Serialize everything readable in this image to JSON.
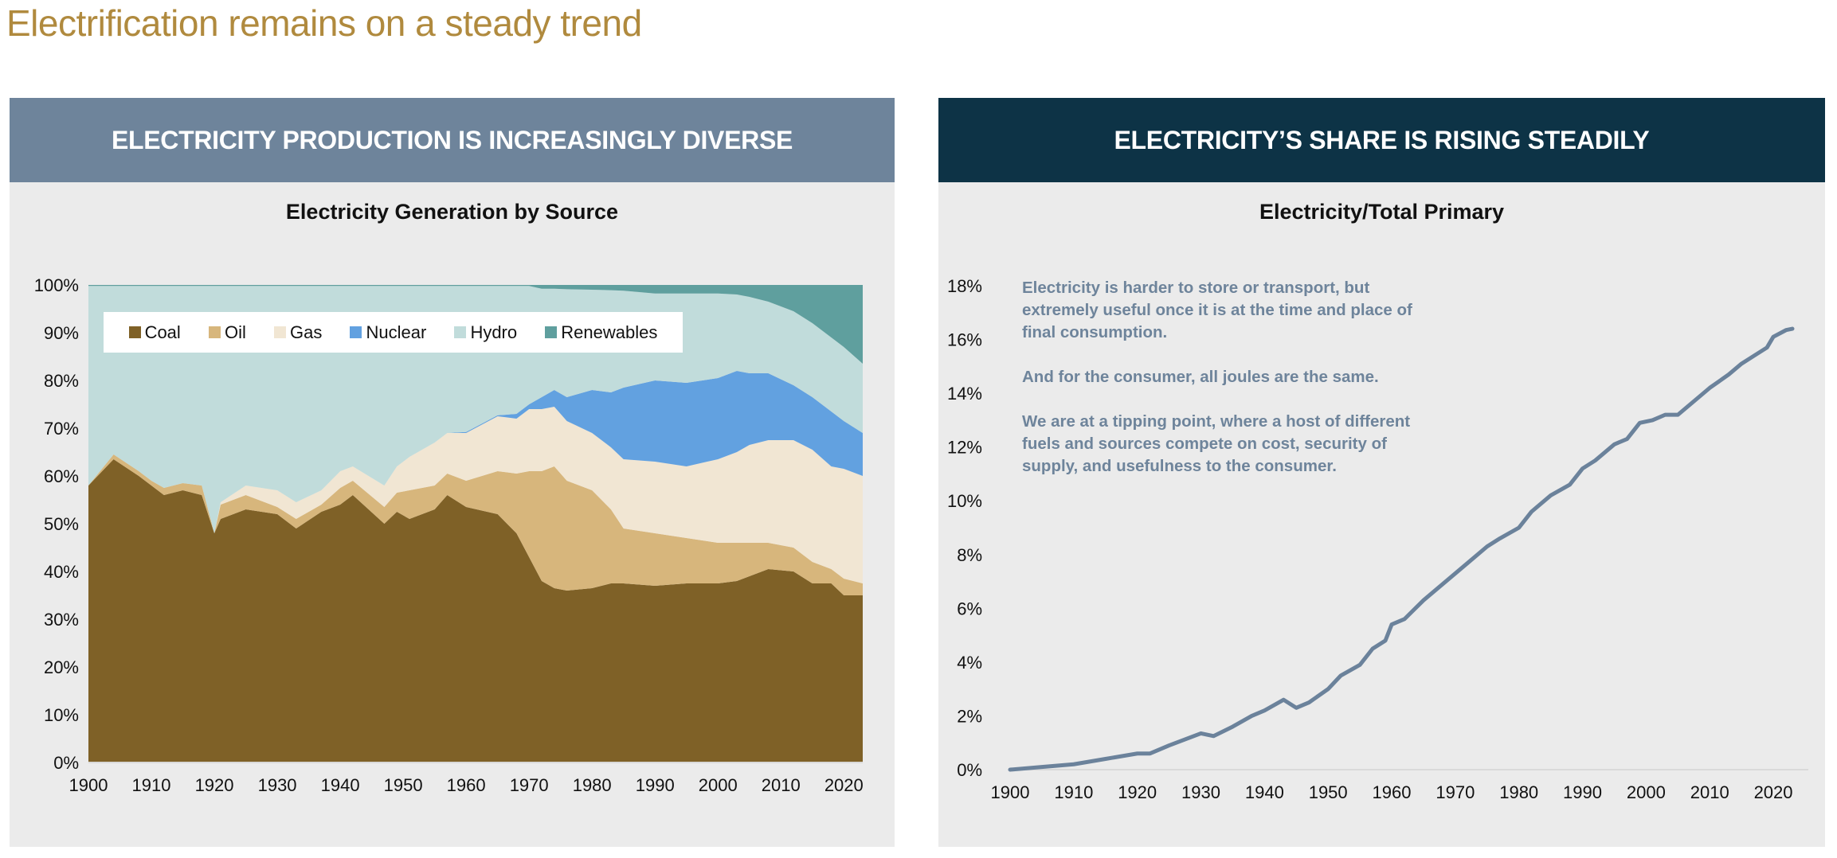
{
  "page": {
    "title": "Electrification remains on a steady trend"
  },
  "left_panel": {
    "header": "ELECTRICITY PRODUCTION IS INCREASINGLY DIVERSE"
  },
  "right_panel": {
    "header": "ELECTRICITY’S SHARE IS RISING STEADILY",
    "note": [
      "Electricity is harder to store or transport, but extremely useful once it is at the time and place of final consumption.",
      "And for the consumer, all joules are the same.",
      "We are at a tipping point, where a host of different fuels and sources  compete on cost, security of supply, and usefulness to the consumer."
    ]
  },
  "chart_data": [
    {
      "type": "area",
      "stacked": true,
      "title": "Electricity Generation by Source",
      "xlabel": "",
      "ylabel": "",
      "xlim": [
        1900,
        2023
      ],
      "ylim": [
        0,
        100
      ],
      "x_ticks": [
        "1900",
        "1910",
        "1920",
        "1930",
        "1940",
        "1950",
        "1960",
        "1970",
        "1980",
        "1990",
        "2000",
        "2010",
        "2020"
      ],
      "y_ticks": [
        "0%",
        "10%",
        "20%",
        "30%",
        "40%",
        "50%",
        "60%",
        "70%",
        "80%",
        "90%",
        "100%"
      ],
      "legend_position": "top-left",
      "x": [
        1900,
        1904,
        1908,
        1910,
        1912,
        1915,
        1918,
        1920,
        1921,
        1925,
        1930,
        1933,
        1937,
        1940,
        1942,
        1947,
        1949,
        1951,
        1955,
        1957,
        1960,
        1965,
        1968,
        1970,
        1972,
        1974,
        1976,
        1980,
        1983,
        1985,
        1990,
        1995,
        2000,
        2003,
        2005,
        2008,
        2012,
        2015,
        2018,
        2020,
        2023
      ],
      "series": [
        {
          "name": "Coal",
          "color": "#7F6127",
          "values": [
            58,
            63.5,
            60,
            58,
            56,
            57,
            56,
            48,
            51,
            53,
            52,
            49,
            52.5,
            54,
            56,
            50,
            52.5,
            51,
            53,
            56,
            53.5,
            52,
            48,
            43,
            38,
            36.5,
            36,
            36.5,
            37.5,
            37.5,
            37,
            37.5,
            37.5,
            38,
            39,
            40.5,
            40,
            37.5,
            37.5,
            35,
            35
          ]
        },
        {
          "name": "Oil",
          "color": "#D7B67C",
          "values": [
            0,
            1,
            1,
            1,
            1.5,
            1.5,
            2,
            0,
            3,
            3,
            1.5,
            2,
            1.5,
            3.5,
            3,
            3.5,
            4,
            6,
            5,
            4.5,
            5.5,
            9,
            12.5,
            18,
            23,
            25.5,
            23,
            20.5,
            15.5,
            11.5,
            11,
            9.5,
            8.5,
            8,
            7,
            5.5,
            5,
            4.5,
            3,
            3.5,
            2.5
          ]
        },
        {
          "name": "Gas",
          "color": "#F1E6D3",
          "values": [
            0,
            0,
            0,
            0,
            0,
            0,
            0,
            0,
            0.5,
            2,
            3.5,
            3.5,
            3,
            3.5,
            3,
            4.5,
            5.5,
            7,
            9,
            8.5,
            10,
            11.5,
            11.5,
            13,
            13,
            12.5,
            12.5,
            12,
            13,
            14.5,
            15,
            15,
            17.5,
            19,
            20.5,
            21.5,
            22.5,
            23.5,
            21.5,
            23,
            22.5
          ]
        },
        {
          "name": "Nuclear",
          "color": "#62A1E0",
          "values": [
            0,
            0,
            0,
            0,
            0,
            0,
            0,
            0,
            0,
            0,
            0,
            0,
            0,
            0,
            0,
            0,
            0,
            0,
            0,
            0,
            0.2,
            0.2,
            1,
            1,
            2.5,
            3.5,
            5,
            9,
            11.5,
            15,
            17,
            17.5,
            17,
            17,
            15,
            14,
            11.5,
            11,
            11.5,
            10,
            9
          ]
        },
        {
          "name": "Hydro",
          "color": "#C1DCDB",
          "values": [
            41.8,
            35.3,
            38.8,
            40.8,
            42.3,
            41.3,
            41.8,
            51.8,
            45.3,
            41.8,
            42.8,
            45.3,
            42.8,
            38.8,
            37.8,
            41.8,
            37.8,
            35.8,
            32.8,
            30.8,
            30.6,
            27.1,
            26.8,
            24.8,
            22.7,
            21.2,
            22.6,
            21,
            21.4,
            20.3,
            18.2,
            18.7,
            17.7,
            16,
            16,
            15,
            15.5,
            15.5,
            15.5,
            15.5,
            14.5
          ]
        },
        {
          "name": "Renewables",
          "color": "#5F9F9E",
          "values": [
            0.2,
            0.2,
            0.2,
            0.2,
            0.2,
            0.2,
            0.2,
            0.2,
            0.2,
            0.2,
            0.2,
            0.2,
            0.2,
            0.2,
            0.2,
            0.2,
            0.2,
            0.2,
            0.2,
            0.2,
            0.2,
            0.2,
            0.2,
            0.2,
            0.8,
            0.8,
            0.9,
            1,
            1.1,
            1.2,
            1.8,
            1.8,
            1.8,
            2,
            2.5,
            3.5,
            5.5,
            8,
            11,
            13,
            16.5
          ]
        }
      ]
    },
    {
      "type": "line",
      "title": "Electricity/Total Primary",
      "xlabel": "",
      "ylabel": "",
      "xlim": [
        1900,
        2023
      ],
      "ylim": [
        0,
        18
      ],
      "x_ticks": [
        "1900",
        "1910",
        "1920",
        "1930",
        "1940",
        "1950",
        "1960",
        "1970",
        "1980",
        "1990",
        "2000",
        "2010",
        "2020"
      ],
      "y_ticks": [
        "0%",
        "2%",
        "4%",
        "6%",
        "8%",
        "10%",
        "12%",
        "14%",
        "16%",
        "18%"
      ],
      "color": "#6B829B",
      "x": [
        1900,
        1905,
        1910,
        1915,
        1920,
        1922,
        1925,
        1930,
        1932,
        1935,
        1938,
        1940,
        1943,
        1945,
        1947,
        1950,
        1952,
        1955,
        1957,
        1959,
        1960,
        1962,
        1965,
        1968,
        1970,
        1972,
        1975,
        1977,
        1980,
        1982,
        1985,
        1988,
        1990,
        1992,
        1995,
        1997,
        1999,
        2001,
        2003,
        2005,
        2008,
        2010,
        2013,
        2015,
        2017,
        2019,
        2020,
        2022,
        2023
      ],
      "values": [
        0,
        0.1,
        0.2,
        0.4,
        0.6,
        0.6,
        0.9,
        1.35,
        1.25,
        1.6,
        2.0,
        2.2,
        2.6,
        2.3,
        2.5,
        3.0,
        3.5,
        3.9,
        4.5,
        4.8,
        5.4,
        5.6,
        6.3,
        6.9,
        7.3,
        7.7,
        8.3,
        8.6,
        9.0,
        9.6,
        10.2,
        10.6,
        11.2,
        11.5,
        12.1,
        12.3,
        12.9,
        13.0,
        13.2,
        13.2,
        13.8,
        14.2,
        14.7,
        15.1,
        15.4,
        15.7,
        16.1,
        16.35,
        16.4
      ]
    }
  ]
}
